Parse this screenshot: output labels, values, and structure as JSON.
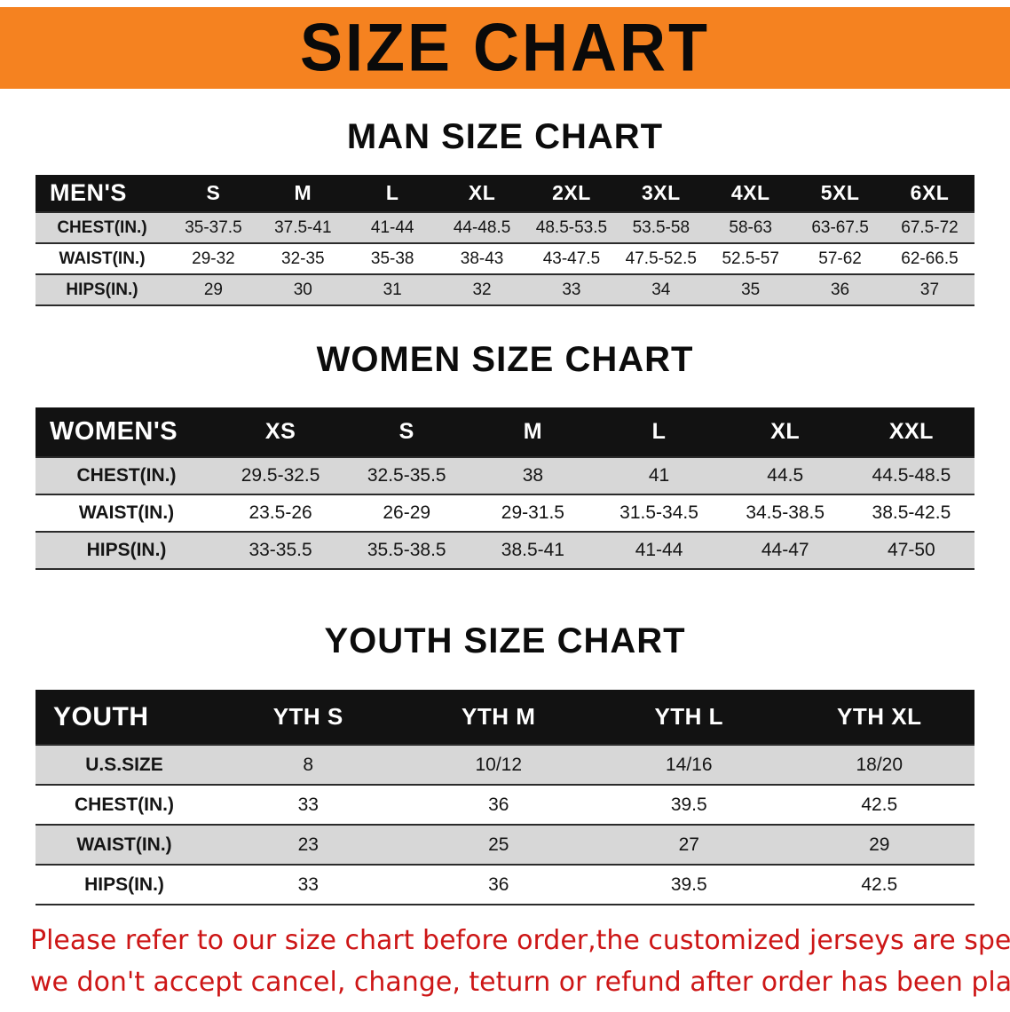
{
  "banner": {
    "title": "SIZE CHART"
  },
  "sections": [
    {
      "id": "men",
      "heading": "MAN SIZE CHART",
      "table": {
        "header": [
          "MEN'S",
          "S",
          "M",
          "L",
          "XL",
          "2XL",
          "3XL",
          "4XL",
          "5XL",
          "6XL"
        ],
        "rows": [
          [
            "CHEST(IN.)",
            "35-37.5",
            "37.5-41",
            "41-44",
            "44-48.5",
            "48.5-53.5",
            "53.5-58",
            "58-63",
            "63-67.5",
            "67.5-72"
          ],
          [
            "WAIST(IN.)",
            "29-32",
            "32-35",
            "35-38",
            "38-43",
            "43-47.5",
            "47.5-52.5",
            "52.5-57",
            "57-62",
            "62-66.5"
          ],
          [
            "HIPS(IN.)",
            "29",
            "30",
            "31",
            "32",
            "33",
            "34",
            "35",
            "36",
            "37"
          ]
        ]
      }
    },
    {
      "id": "women",
      "heading": "WOMEN SIZE CHART",
      "table": {
        "header": [
          "WOMEN'S",
          "XS",
          "S",
          "M",
          "L",
          "XL",
          "XXL"
        ],
        "rows": [
          [
            "CHEST(IN.)",
            "29.5-32.5",
            "32.5-35.5",
            "38",
            "41",
            "44.5",
            "44.5-48.5"
          ],
          [
            "WAIST(IN.)",
            "23.5-26",
            "26-29",
            "29-31.5",
            "31.5-34.5",
            "34.5-38.5",
            "38.5-42.5"
          ],
          [
            "HIPS(IN.)",
            "33-35.5",
            "35.5-38.5",
            "38.5-41",
            "41-44",
            "44-47",
            "47-50"
          ]
        ]
      }
    },
    {
      "id": "youth",
      "heading": "YOUTH SIZE CHART",
      "table": {
        "header": [
          "YOUTH",
          "YTH S",
          "YTH M",
          "YTH L",
          "YTH XL"
        ],
        "rows": [
          [
            "U.S.SIZE",
            "8",
            "10/12",
            "14/16",
            "18/20"
          ],
          [
            "CHEST(IN.)",
            "33",
            "36",
            "39.5",
            "42.5"
          ],
          [
            "WAIST(IN.)",
            "23",
            "25",
            "27",
            "29"
          ],
          [
            "HIPS(IN.)",
            "33",
            "36",
            "39.5",
            "42.5"
          ]
        ]
      }
    }
  ],
  "footer": {
    "line1": "Please refer to our size chart before order,the customized jerseys are special products,",
    "line2": "we don't accept cancel, change, teturn or refund after order has been placed!"
  },
  "colors": {
    "banner_orange": "#f58220",
    "header_black": "#121212",
    "row_gray": "#d7d7d7",
    "footer_red": "#cd1616",
    "text_black": "#111111"
  }
}
